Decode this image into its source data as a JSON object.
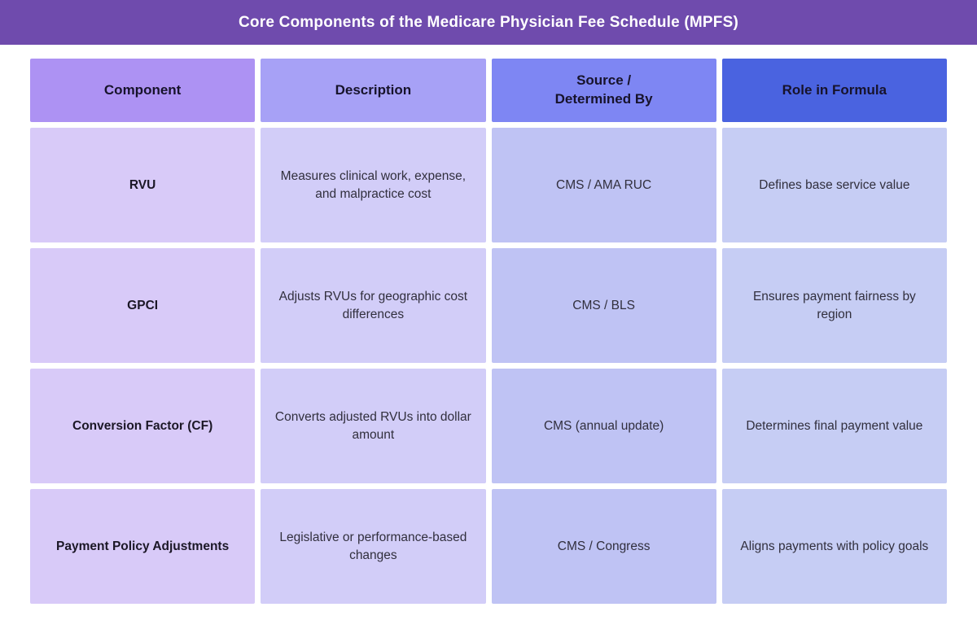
{
  "title": "Core Components of the Medicare Physician Fee Schedule (MPFS)",
  "colors": {
    "banner": "#6f4bad",
    "header_component": "#ad92f3",
    "header_description": "#a7a1f6",
    "header_source": "#7e86f3",
    "header_role": "#4a63e0",
    "cell_component": "#d8caf8",
    "cell_description": "#d2cdf8",
    "cell_source": "#bfc3f4",
    "cell_role": "#c6cdf4"
  },
  "chart_data": {
    "type": "table",
    "title": "Core Components of the Medicare Physician Fee Schedule (MPFS)",
    "columns": [
      "Component",
      "Description",
      "Source / Determined By",
      "Role in Formula"
    ],
    "rows": [
      [
        "RVU",
        "Measures clinical work, expense, and malpractice cost",
        "CMS / AMA RUC",
        "Defines base service value"
      ],
      [
        "GPCI",
        "Adjusts RVUs for geographic cost differences",
        "CMS / BLS",
        "Ensures payment fairness by region"
      ],
      [
        "Conversion Factor (CF)",
        "Converts adjusted RVUs into dollar amount",
        "CMS (annual update)",
        "Determines final payment value"
      ],
      [
        "Payment Policy Adjustments",
        "Legislative or performance-based changes",
        "CMS / Congress",
        "Aligns payments with policy goals"
      ]
    ]
  },
  "table": {
    "headers": {
      "component": "Component",
      "description": "Description",
      "source": "Source /\nDetermined By",
      "role": "Role in Formula"
    },
    "rows": [
      {
        "component": "RVU",
        "description": "Measures clinical work, expense, and malpractice cost",
        "source": "CMS / AMA RUC",
        "role": "Defines base service value"
      },
      {
        "component": "GPCI",
        "description": "Adjusts RVUs for geographic cost differences",
        "source": "CMS / BLS",
        "role": "Ensures payment fairness by region"
      },
      {
        "component": "Conversion Factor (CF)",
        "description": "Converts adjusted RVUs into dollar amount",
        "source": "CMS (annual update)",
        "role": "Determines final payment value"
      },
      {
        "component": "Payment Policy Adjustments",
        "description": "Legislative or performance-based changes",
        "source": "CMS / Congress",
        "role": "Aligns payments with policy goals"
      }
    ]
  }
}
